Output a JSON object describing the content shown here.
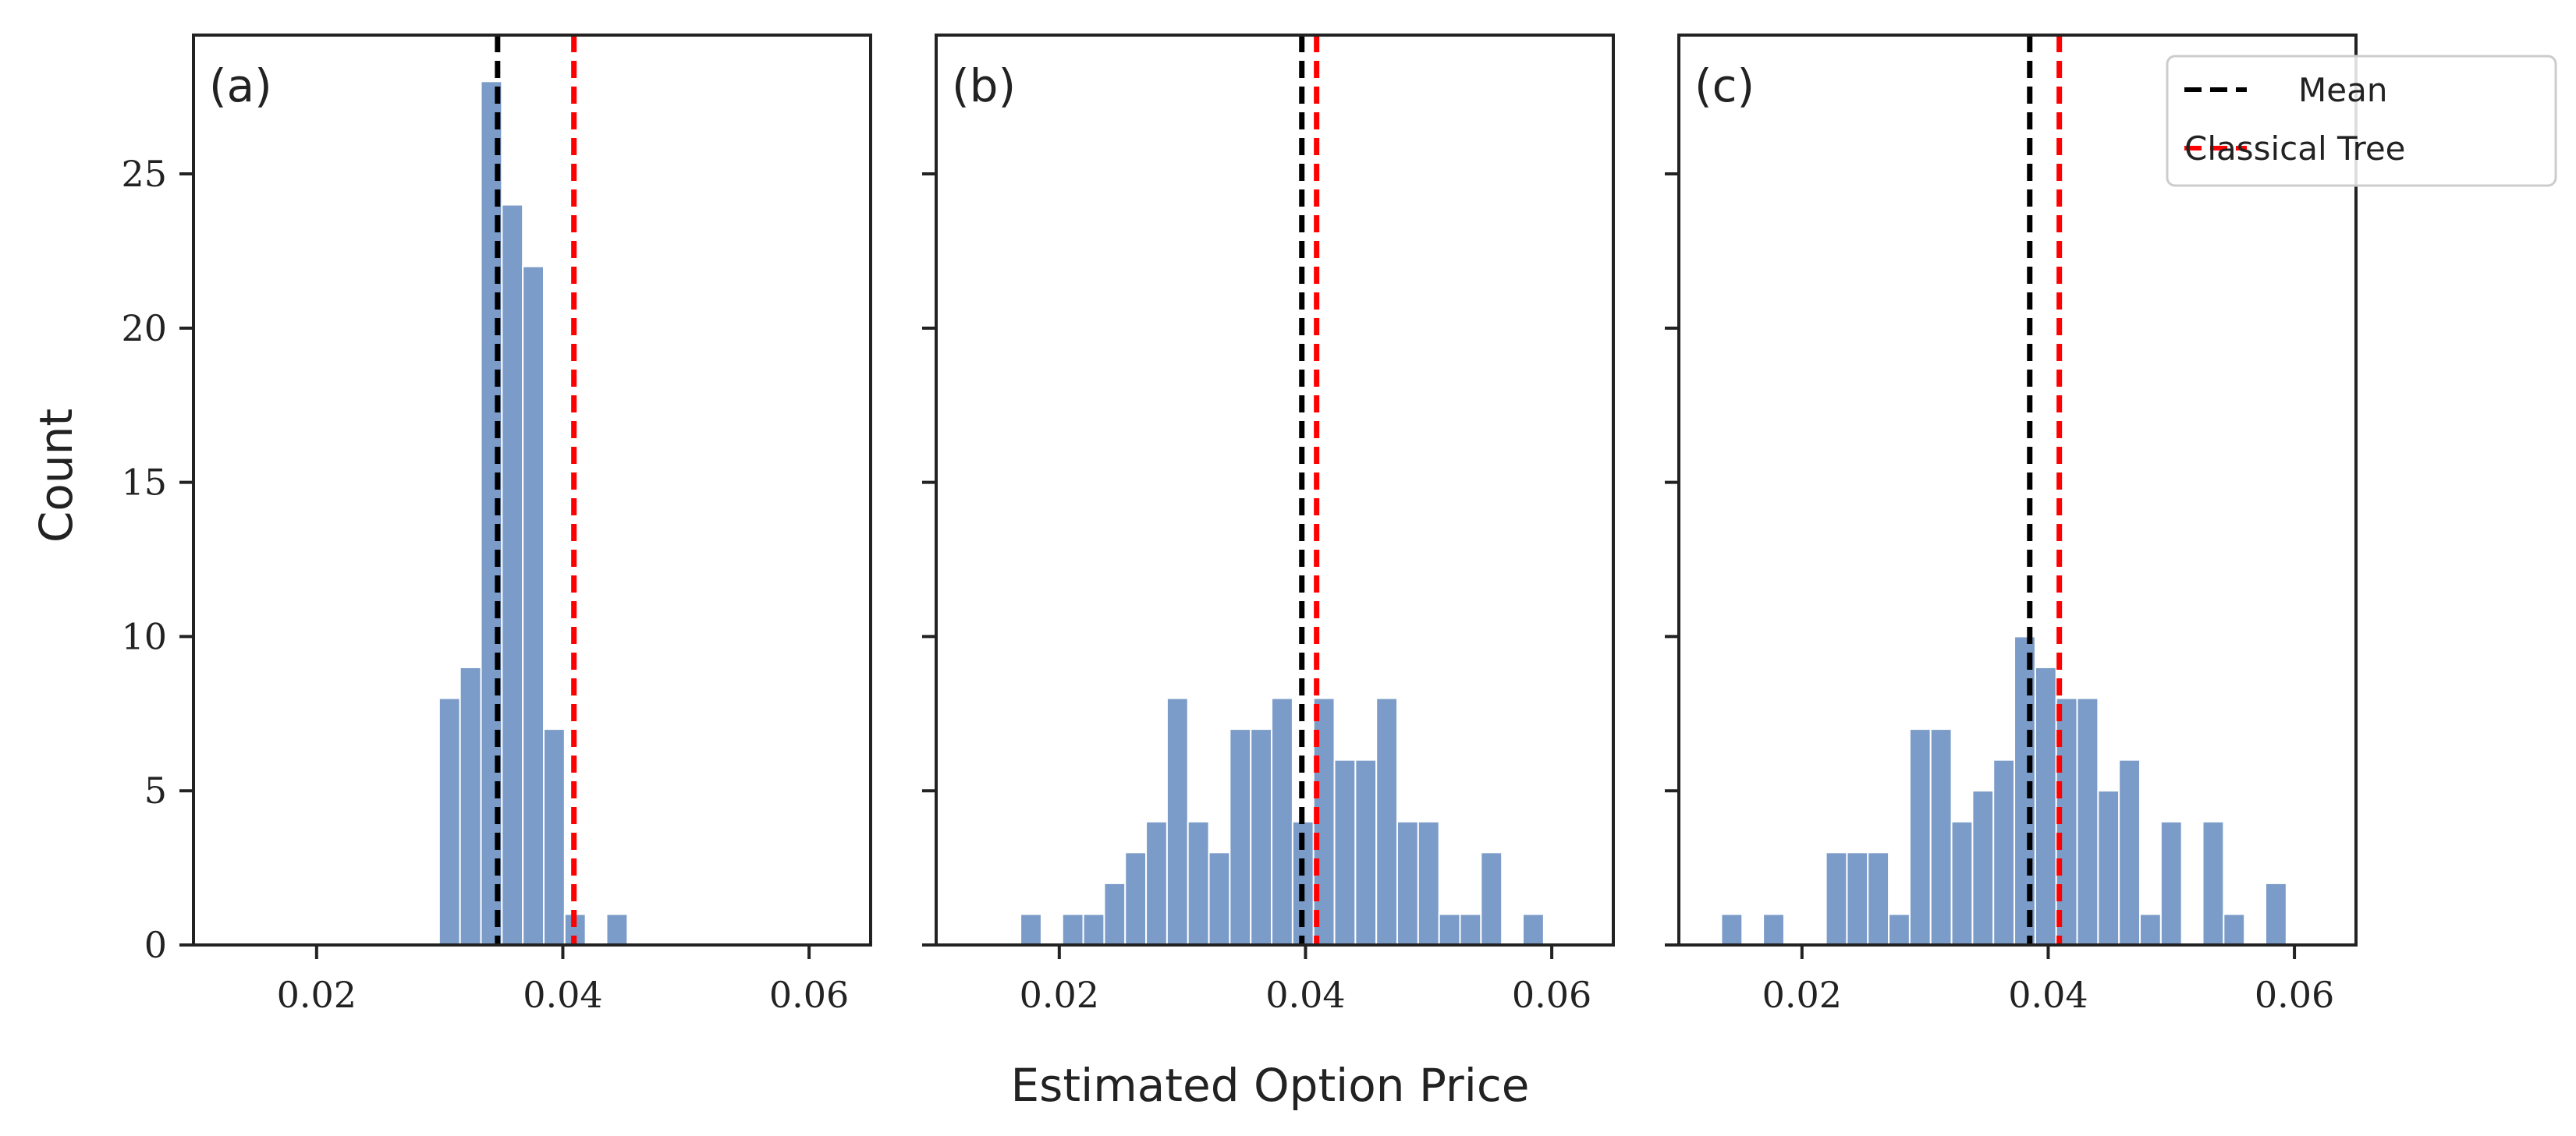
{
  "colors": {
    "bar": "#7b9bc8",
    "mean_line": "#000000",
    "classical_line": "#ff0000",
    "axes": "#222222"
  },
  "chart_data": [
    {
      "type": "bar",
      "panel_label": "(a)",
      "bin_width": 0.0017,
      "bins": [
        {
          "x": 0.0308,
          "value": 8
        },
        {
          "x": 0.0325,
          "value": 9
        },
        {
          "x": 0.0342,
          "value": 28
        },
        {
          "x": 0.0359,
          "value": 24
        },
        {
          "x": 0.0376,
          "value": 22
        },
        {
          "x": 0.0393,
          "value": 7
        },
        {
          "x": 0.041,
          "value": 1
        },
        {
          "x": 0.0444,
          "value": 1
        }
      ],
      "mean": 0.0347,
      "classical_tree": 0.0409,
      "xlim": [
        0.01,
        0.065
      ],
      "ylim": [
        0,
        29.5
      ],
      "xticks": [
        0.02,
        0.04,
        0.06
      ],
      "xtick_labels": [
        "0.02",
        "0.04",
        "0.06"
      ],
      "yticks": [
        0,
        5,
        10,
        15,
        20,
        25
      ],
      "ytick_labels": [
        "0",
        "5",
        "10",
        "15",
        "20",
        "25"
      ]
    },
    {
      "type": "bar",
      "panel_label": "(b)",
      "bin_width": 0.0017,
      "bins": [
        {
          "x": 0.0177,
          "value": 1
        },
        {
          "x": 0.0211,
          "value": 1
        },
        {
          "x": 0.0228,
          "value": 1
        },
        {
          "x": 0.0245,
          "value": 2
        },
        {
          "x": 0.0262,
          "value": 3
        },
        {
          "x": 0.0279,
          "value": 4
        },
        {
          "x": 0.0296,
          "value": 8
        },
        {
          "x": 0.0313,
          "value": 4
        },
        {
          "x": 0.033,
          "value": 3
        },
        {
          "x": 0.0347,
          "value": 7
        },
        {
          "x": 0.0364,
          "value": 7
        },
        {
          "x": 0.0381,
          "value": 8
        },
        {
          "x": 0.0398,
          "value": 4
        },
        {
          "x": 0.0415,
          "value": 8
        },
        {
          "x": 0.0432,
          "value": 6
        },
        {
          "x": 0.0449,
          "value": 6
        },
        {
          "x": 0.0466,
          "value": 8
        },
        {
          "x": 0.0483,
          "value": 4
        },
        {
          "x": 0.05,
          "value": 4
        },
        {
          "x": 0.0517,
          "value": 1
        },
        {
          "x": 0.0534,
          "value": 1
        },
        {
          "x": 0.0551,
          "value": 3
        },
        {
          "x": 0.0585,
          "value": 1
        }
      ],
      "mean": 0.0397,
      "classical_tree": 0.0409,
      "xlim": [
        0.01,
        0.065
      ],
      "ylim": [
        0,
        29.5
      ],
      "xticks": [
        0.02,
        0.04,
        0.06
      ],
      "xtick_labels": [
        "0.02",
        "0.04",
        "0.06"
      ],
      "yticks": [
        0,
        5,
        10,
        15,
        20,
        25
      ],
      "ytick_labels": [
        "",
        "",
        "",
        "",
        "",
        ""
      ]
    },
    {
      "type": "bar",
      "panel_label": "(c)",
      "bin_width": 0.0017,
      "bins": [
        {
          "x": 0.0143,
          "value": 1
        },
        {
          "x": 0.0177,
          "value": 1
        },
        {
          "x": 0.0228,
          "value": 3
        },
        {
          "x": 0.0245,
          "value": 3
        },
        {
          "x": 0.0262,
          "value": 3
        },
        {
          "x": 0.0279,
          "value": 1
        },
        {
          "x": 0.0296,
          "value": 7
        },
        {
          "x": 0.0313,
          "value": 7
        },
        {
          "x": 0.033,
          "value": 4
        },
        {
          "x": 0.0347,
          "value": 5
        },
        {
          "x": 0.0364,
          "value": 6
        },
        {
          "x": 0.0381,
          "value": 10
        },
        {
          "x": 0.0398,
          "value": 9
        },
        {
          "x": 0.0415,
          "value": 8
        },
        {
          "x": 0.0432,
          "value": 8
        },
        {
          "x": 0.0449,
          "value": 5
        },
        {
          "x": 0.0466,
          "value": 6
        },
        {
          "x": 0.0483,
          "value": 1
        },
        {
          "x": 0.05,
          "value": 4
        },
        {
          "x": 0.0534,
          "value": 4
        },
        {
          "x": 0.0551,
          "value": 1
        },
        {
          "x": 0.0585,
          "value": 2
        }
      ],
      "mean": 0.0385,
      "classical_tree": 0.0409,
      "xlim": [
        0.01,
        0.065
      ],
      "ylim": [
        0,
        29.5
      ],
      "xticks": [
        0.02,
        0.04,
        0.06
      ],
      "xtick_labels": [
        "0.02",
        "0.04",
        "0.06"
      ],
      "yticks": [
        0,
        5,
        10,
        15,
        20,
        25
      ],
      "ytick_labels": [
        "",
        "",
        "",
        "",
        "",
        ""
      ]
    }
  ],
  "axes": {
    "xlabel": "Estimated Option Price",
    "ylabel": "Count"
  },
  "legend": {
    "placement": "top-right",
    "entries": [
      {
        "label": "Mean",
        "color": "#000000",
        "style": "dashed"
      },
      {
        "label": "Classical Tree",
        "color": "#ff0000",
        "style": "dashed"
      }
    ]
  }
}
